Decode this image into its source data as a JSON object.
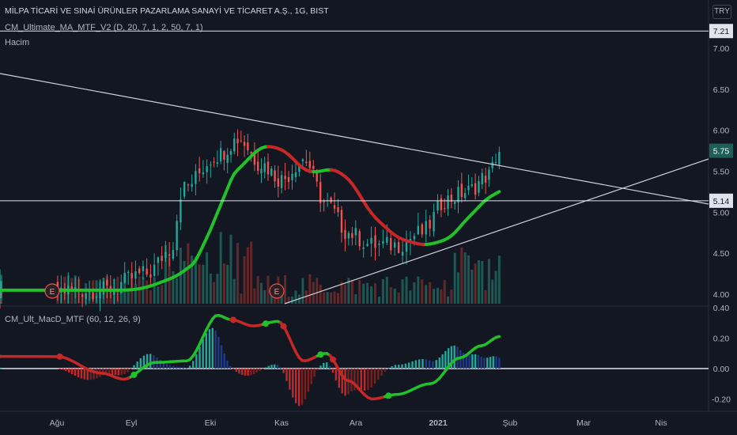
{
  "header": {
    "title": "MİLPA TİCARİ VE SINAİ ÜRÜNLER PAZARLAMA SANAYİ VE TİCARET A.Ş., 1G, BIST",
    "indicator": "CM_Ultimate_MA_MTF_V2 (D, 20, 7, 1, 2, 50, 7, 1)",
    "volume_label": "Hacim",
    "macd_label": "CM_Ult_MacD_MTF (60, 12, 26, 9)",
    "currency": "TRY"
  },
  "colors": {
    "background": "#131722",
    "bull": "#26a69a",
    "bear": "#ef5350",
    "ma_up": "#22c02a",
    "ma_down": "#c62828",
    "signal": "#e3d15a",
    "price_badge": "#1e5e55",
    "trendline": "#d1d4dc"
  },
  "chart_data": [
    {
      "type": "candlestick",
      "y_ticks": [
        "7.21",
        "7.00",
        "6.50",
        "6.00",
        "5.75",
        "5.50",
        "5.14",
        "5.00",
        "4.50",
        "4.00"
      ],
      "ylim": [
        3.9,
        7.25
      ],
      "x_ticks": [
        "Ağu",
        "Eyl",
        "Eki",
        "Kas",
        "Ara",
        "2021",
        "Şub",
        "Mar",
        "Nis"
      ],
      "last_price": 5.75,
      "horizontal_levels": [
        7.21,
        5.14
      ],
      "event_markers": [
        "E",
        "E"
      ],
      "ma_end_value": 5.3,
      "close_anchors": [
        {
          "month": 0,
          "value": 4.05
        },
        {
          "month": 0.6,
          "value": 4.05
        },
        {
          "month": 1.2,
          "value": 4.25
        },
        {
          "month": 1.5,
          "value": 4.55
        },
        {
          "month": 1.65,
          "value": 5.3
        },
        {
          "month": 2.1,
          "value": 5.7
        },
        {
          "month": 2.4,
          "value": 5.9
        },
        {
          "month": 2.7,
          "value": 5.6
        },
        {
          "month": 3.0,
          "value": 5.4
        },
        {
          "month": 3.3,
          "value": 5.65
        },
        {
          "month": 3.6,
          "value": 5.1
        },
        {
          "month": 3.9,
          "value": 4.75
        },
        {
          "month": 4.2,
          "value": 4.6
        },
        {
          "month": 4.5,
          "value": 4.6
        },
        {
          "month": 4.8,
          "value": 4.75
        },
        {
          "month": 5.1,
          "value": 5.15
        },
        {
          "month": 5.4,
          "value": 5.25
        },
        {
          "month": 5.7,
          "value": 5.45
        },
        {
          "month": 5.85,
          "value": 5.75
        }
      ]
    },
    {
      "type": "macd",
      "y_ticks": [
        "0.40",
        "0.20",
        "0.00",
        "-0.20"
      ],
      "ylim": [
        -0.24,
        0.4
      ],
      "macd_anchors": [
        {
          "month": 0,
          "value": 0.08
        },
        {
          "month": 0.6,
          "value": -0.03
        },
        {
          "month": 0.9,
          "value": -0.07
        },
        {
          "month": 1.3,
          "value": 0.04
        },
        {
          "month": 1.7,
          "value": 0.05
        },
        {
          "month": 2.1,
          "value": 0.35
        },
        {
          "month": 2.3,
          "value": 0.32
        },
        {
          "month": 2.6,
          "value": 0.28
        },
        {
          "month": 2.95,
          "value": 0.31
        },
        {
          "month": 3.3,
          "value": 0.05
        },
        {
          "month": 3.6,
          "value": 0.1
        },
        {
          "month": 3.9,
          "value": -0.08
        },
        {
          "month": 4.2,
          "value": -0.2
        },
        {
          "month": 4.5,
          "value": -0.17
        },
        {
          "month": 4.9,
          "value": -0.1
        },
        {
          "month": 5.3,
          "value": 0.07
        },
        {
          "month": 5.6,
          "value": 0.15
        },
        {
          "month": 5.85,
          "value": 0.21
        }
      ]
    }
  ]
}
